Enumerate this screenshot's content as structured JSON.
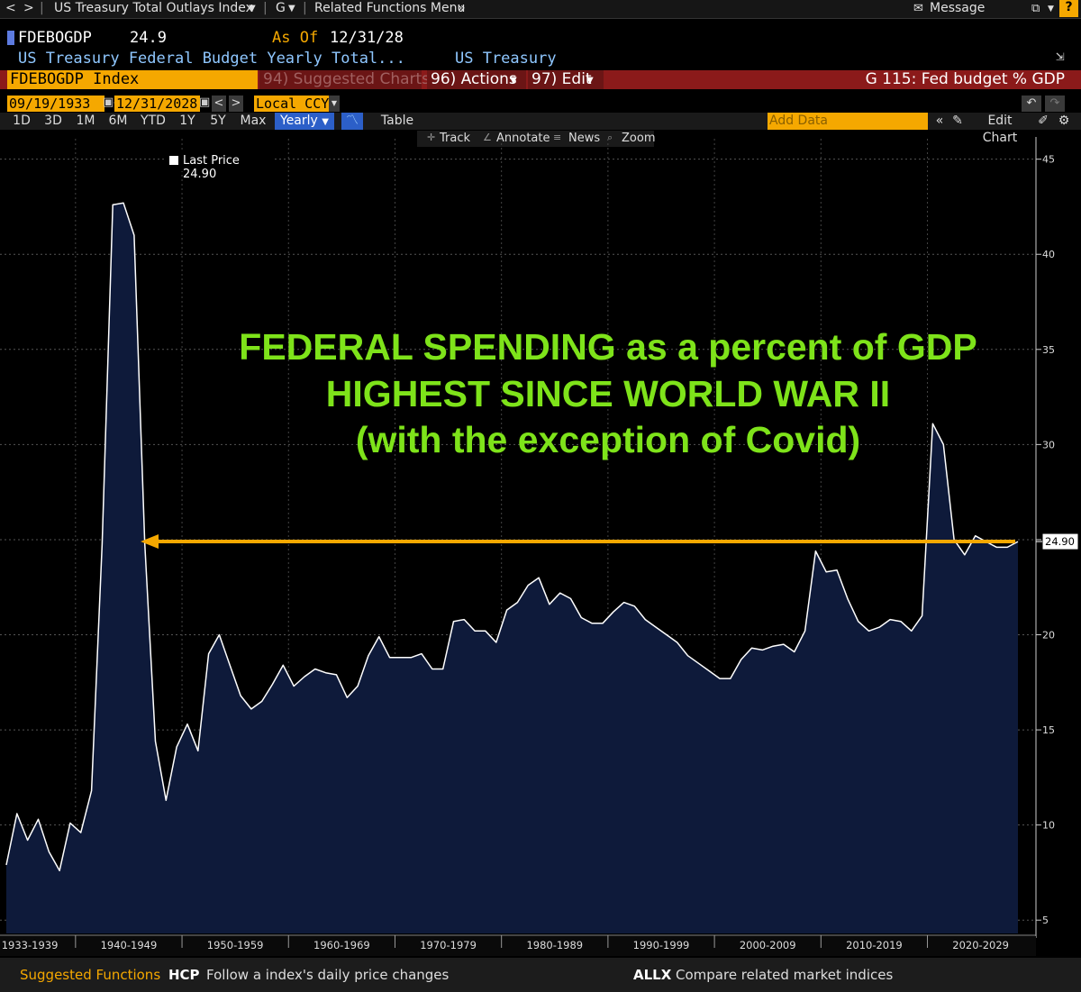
{
  "nav": {
    "back": "<",
    "forward": ">",
    "title": "US Treasury Total Outlays Index",
    "function": "G",
    "related_menu": "Related Functions Menu",
    "message": "Message",
    "help": "?"
  },
  "security": {
    "ticker": "FDEBOGDP",
    "last_value": "24.9",
    "as_of_label": "As Of",
    "as_of_date": "12/31/28",
    "description": "US Treasury Federal Budget Yearly Total...",
    "source": "US Treasury"
  },
  "function_bar": {
    "index_field": "FDEBOGDP Index",
    "suggested_charts": "94) Suggested Charts",
    "actions": "96) Actions",
    "edit": "97) Edit",
    "chart_name": "G 115: Fed budget % GDP"
  },
  "range_bar": {
    "start_date": "09/19/1933",
    "end_date": "12/31/2028",
    "dash": "-",
    "currency": "Local CCY"
  },
  "period_tabs": [
    "1D",
    "3D",
    "1M",
    "6M",
    "YTD",
    "1Y",
    "5Y",
    "Max"
  ],
  "period_selected": "Yearly",
  "table_tab": "Table",
  "add_data_placeholder": "Add Data",
  "edit_chart": "Edit Chart",
  "chart_tools": {
    "track": "Track",
    "annotate": "Annotate",
    "news": "News",
    "zoom": "Zoom"
  },
  "legend": {
    "label": "Last Price 24.90"
  },
  "annotation": {
    "line1": "FEDERAL SPENDING as a percent of GDP",
    "line2": "HIGHEST SINCE WORLD WAR II",
    "line3": "(with the exception of Covid)",
    "arrow_level": 24.9,
    "arrow_color": "#f5a800",
    "text_color": "#7ee31a"
  },
  "chart_data": {
    "type": "area",
    "title": "G 115: Fed budget % GDP",
    "series": [
      {
        "name": "Last Price",
        "last_value": 24.9
      }
    ],
    "x": [
      1933,
      1934,
      1935,
      1936,
      1937,
      1938,
      1939,
      1940,
      1941,
      1942,
      1943,
      1944,
      1945,
      1946,
      1947,
      1948,
      1949,
      1950,
      1951,
      1952,
      1953,
      1954,
      1955,
      1956,
      1957,
      1958,
      1959,
      1960,
      1961,
      1962,
      1963,
      1964,
      1965,
      1966,
      1967,
      1968,
      1969,
      1970,
      1971,
      1972,
      1973,
      1974,
      1975,
      1976,
      1977,
      1978,
      1979,
      1980,
      1981,
      1982,
      1983,
      1984,
      1985,
      1986,
      1987,
      1988,
      1989,
      1990,
      1991,
      1992,
      1993,
      1994,
      1995,
      1996,
      1997,
      1998,
      1999,
      2000,
      2001,
      2002,
      2003,
      2004,
      2005,
      2006,
      2007,
      2008,
      2009,
      2010,
      2011,
      2012,
      2013,
      2014,
      2015,
      2016,
      2017,
      2018,
      2019,
      2020,
      2021,
      2022,
      2023,
      2024,
      2025,
      2026,
      2027,
      2028
    ],
    "values": [
      7.9,
      10.6,
      9.2,
      10.3,
      8.6,
      7.6,
      10.1,
      9.6,
      11.8,
      24.8,
      42.6,
      42.7,
      41.0,
      24.8,
      14.4,
      11.3,
      14.1,
      15.3,
      13.9,
      19.0,
      20.0,
      18.4,
      16.8,
      16.1,
      16.5,
      17.4,
      18.4,
      17.3,
      17.8,
      18.2,
      18.0,
      17.9,
      16.7,
      17.3,
      18.9,
      19.9,
      18.8,
      18.8,
      18.8,
      19.0,
      18.2,
      18.2,
      20.7,
      20.8,
      20.2,
      20.2,
      19.6,
      21.3,
      21.7,
      22.6,
      23.0,
      21.6,
      22.2,
      21.9,
      20.9,
      20.6,
      20.6,
      21.2,
      21.7,
      21.5,
      20.8,
      20.4,
      20.0,
      19.6,
      18.9,
      18.5,
      18.1,
      17.7,
      17.7,
      18.7,
      19.3,
      19.2,
      19.4,
      19.5,
      19.1,
      20.2,
      24.4,
      23.3,
      23.4,
      21.9,
      20.7,
      20.2,
      20.4,
      20.8,
      20.7,
      20.2,
      21.0,
      31.1,
      30.0,
      25.0,
      24.2,
      25.2,
      24.9,
      24.6,
      24.6,
      24.9
    ],
    "xlabel": "",
    "ylabel": "",
    "ylim": [
      4.3,
      45.6
    ],
    "yticks": [
      5,
      10,
      15,
      20,
      25,
      30,
      35,
      40,
      45
    ],
    "xtick_labels": [
      "1933-1939",
      "1940-1949",
      "1950-1959",
      "1960-1969",
      "1970-1979",
      "1980-1989",
      "1990-1999",
      "2000-2009",
      "2010-2019",
      "2020-2029"
    ],
    "last_value_label": "24.90",
    "fill_color": "#0e1a3a",
    "line_color": "#ffffff",
    "grid": true
  },
  "bottom": {
    "suggested": "Suggested Functions",
    "f1_code": "HCP",
    "f1_desc": "Follow a index's daily price changes",
    "f2_code": "ALLX",
    "f2_desc": "Compare related market indices"
  }
}
